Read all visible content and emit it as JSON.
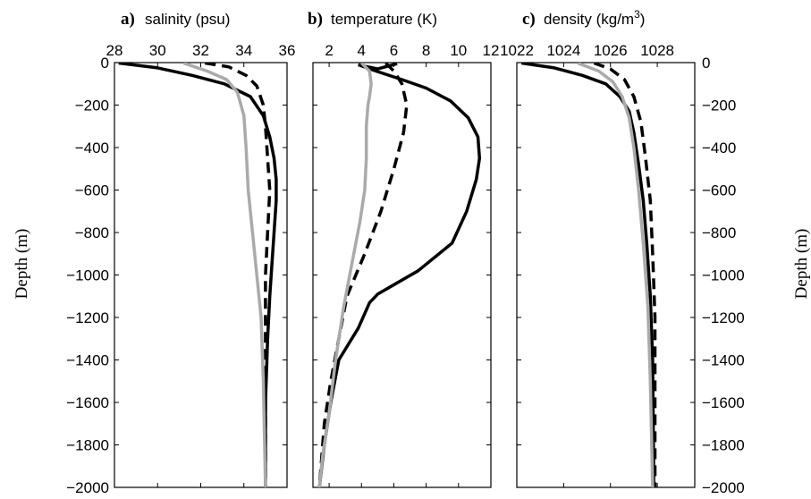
{
  "chart_data": [
    {
      "type": "line",
      "panel_letter": "a)",
      "title": "salinity (psu)",
      "xlim": [
        28,
        36
      ],
      "ylim": [
        -2000,
        0
      ],
      "xticks": [
        28,
        30,
        32,
        34,
        36
      ],
      "yticks": [
        0,
        -200,
        -400,
        -600,
        -800,
        -1000,
        -1200,
        -1400,
        -1600,
        -1800,
        -2000
      ],
      "ylabel": "Depth (m)",
      "yaxis_side": "left",
      "series": [
        {
          "color": "#000000",
          "style": "solid",
          "points": [
            [
              28.2,
              -2
            ],
            [
              30.0,
              -25
            ],
            [
              31.6,
              -60
            ],
            [
              33.1,
              -100
            ],
            [
              34.3,
              -160
            ],
            [
              34.9,
              -250
            ],
            [
              35.2,
              -350
            ],
            [
              35.4,
              -450
            ],
            [
              35.5,
              -550
            ],
            [
              35.5,
              -650
            ],
            [
              35.4,
              -800
            ],
            [
              35.3,
              -950
            ],
            [
              35.2,
              -1100
            ],
            [
              35.1,
              -1300
            ],
            [
              35.0,
              -1600
            ],
            [
              35.0,
              -2000
            ]
          ]
        },
        {
          "color": "#000000",
          "style": "dashed",
          "points": [
            [
              32.2,
              -2
            ],
            [
              33.3,
              -20
            ],
            [
              34.1,
              -60
            ],
            [
              34.6,
              -110
            ],
            [
              34.9,
              -200
            ],
            [
              35.0,
              -300
            ],
            [
              35.1,
              -450
            ],
            [
              35.2,
              -600
            ],
            [
              35.1,
              -800
            ],
            [
              35.0,
              -1000
            ],
            [
              35.0,
              -1300
            ],
            [
              35.0,
              -2000
            ]
          ]
        },
        {
          "color": "#aaaaaa",
          "style": "solid",
          "points": [
            [
              31.2,
              -2
            ],
            [
              32.3,
              -40
            ],
            [
              33.2,
              -80
            ],
            [
              33.7,
              -140
            ],
            [
              34.0,
              -250
            ],
            [
              34.1,
              -400
            ],
            [
              34.2,
              -600
            ],
            [
              34.4,
              -800
            ],
            [
              34.6,
              -1000
            ],
            [
              34.8,
              -1200
            ],
            [
              34.9,
              -1500
            ],
            [
              35.0,
              -2000
            ]
          ]
        }
      ]
    },
    {
      "type": "line",
      "panel_letter": "b)",
      "title": "temperature (K)",
      "xlim": [
        1,
        12
      ],
      "ylim": [
        -2000,
        0
      ],
      "xticks": [
        2,
        4,
        6,
        8,
        10,
        12
      ],
      "yticks": [
        0,
        -200,
        -400,
        -600,
        -800,
        -1000,
        -1200,
        -1400,
        -1600,
        -1800,
        -2000
      ],
      "series": [
        {
          "color": "#000000",
          "style": "solid",
          "points": [
            [
              3.8,
              -10
            ],
            [
              4.9,
              -40
            ],
            [
              6.5,
              -80
            ],
            [
              8.0,
              -120
            ],
            [
              9.5,
              -180
            ],
            [
              10.6,
              -260
            ],
            [
              11.2,
              -350
            ],
            [
              11.3,
              -450
            ],
            [
              11.1,
              -550
            ],
            [
              10.5,
              -700
            ],
            [
              9.6,
              -850
            ],
            [
              7.5,
              -980
            ],
            [
              5.0,
              -1090
            ],
            [
              4.5,
              -1130
            ],
            [
              3.8,
              -1250
            ],
            [
              2.6,
              -1400
            ],
            [
              2.1,
              -1600
            ],
            [
              1.7,
              -1800
            ],
            [
              1.4,
              -2000
            ]
          ]
        },
        {
          "color": "#000000",
          "style": "solid",
          "points": [
            [
              3.8,
              -10
            ],
            [
              5.0,
              -30
            ],
            [
              6.2,
              -5
            ]
          ]
        },
        {
          "color": "#000000",
          "style": "dashed",
          "points": [
            [
              5.5,
              -2
            ],
            [
              6.0,
              -40
            ],
            [
              6.5,
              -100
            ],
            [
              6.8,
              -200
            ],
            [
              6.6,
              -330
            ],
            [
              6.0,
              -500
            ],
            [
              5.2,
              -700
            ],
            [
              4.2,
              -900
            ],
            [
              3.1,
              -1100
            ],
            [
              2.6,
              -1300
            ],
            [
              2.1,
              -1500
            ],
            [
              1.7,
              -1700
            ],
            [
              1.4,
              -2000
            ]
          ]
        },
        {
          "color": "#aaaaaa",
          "style": "solid",
          "points": [
            [
              4.0,
              -2
            ],
            [
              4.5,
              -40
            ],
            [
              4.6,
              -100
            ],
            [
              4.5,
              -160
            ],
            [
              4.4,
              -200
            ],
            [
              4.3,
              -300
            ],
            [
              4.3,
              -450
            ],
            [
              4.2,
              -600
            ],
            [
              3.9,
              -750
            ],
            [
              3.4,
              -950
            ],
            [
              2.9,
              -1150
            ],
            [
              2.4,
              -1400
            ],
            [
              2.0,
              -1650
            ],
            [
              1.6,
              -1850
            ],
            [
              1.4,
              -2000
            ]
          ]
        }
      ]
    },
    {
      "type": "line",
      "panel_letter": "c)",
      "title_prefix": "density (kg/m",
      "title_sup": "3",
      "title_suffix": ")",
      "xlim": [
        1022,
        1029.6
      ],
      "ylim": [
        -2000,
        0
      ],
      "xticks": [
        1022,
        1024,
        1026,
        1028
      ],
      "yticks": [
        0,
        -200,
        -400,
        -600,
        -800,
        -1000,
        -1200,
        -1400,
        -1600,
        -1800,
        -2000
      ],
      "ylabel": "Depth (m)",
      "yaxis_side": "right",
      "series": [
        {
          "color": "#000000",
          "style": "solid",
          "points": [
            [
              1022.2,
              -2
            ],
            [
              1023.6,
              -25
            ],
            [
              1024.8,
              -60
            ],
            [
              1025.8,
              -100
            ],
            [
              1026.4,
              -160
            ],
            [
              1026.8,
              -230
            ],
            [
              1027.0,
              -330
            ],
            [
              1027.2,
              -480
            ],
            [
              1027.4,
              -650
            ],
            [
              1027.55,
              -850
            ],
            [
              1027.7,
              -1100
            ],
            [
              1027.8,
              -1400
            ],
            [
              1027.85,
              -2000
            ]
          ]
        },
        {
          "color": "#000000",
          "style": "dashed",
          "points": [
            [
              1025.3,
              -2
            ],
            [
              1026.0,
              -30
            ],
            [
              1026.6,
              -80
            ],
            [
              1027.0,
              -160
            ],
            [
              1027.3,
              -280
            ],
            [
              1027.5,
              -450
            ],
            [
              1027.7,
              -650
            ],
            [
              1027.8,
              -900
            ],
            [
              1027.9,
              -1200
            ],
            [
              1027.9,
              -1600
            ],
            [
              1027.9,
              -2000
            ]
          ]
        },
        {
          "color": "#aaaaaa",
          "style": "solid",
          "points": [
            [
              1024.6,
              -2
            ],
            [
              1025.5,
              -40
            ],
            [
              1026.1,
              -90
            ],
            [
              1026.5,
              -160
            ],
            [
              1026.8,
              -260
            ],
            [
              1027.0,
              -400
            ],
            [
              1027.2,
              -600
            ],
            [
              1027.4,
              -850
            ],
            [
              1027.6,
              -1150
            ],
            [
              1027.7,
              -1500
            ],
            [
              1027.8,
              -2000
            ]
          ]
        }
      ]
    }
  ]
}
